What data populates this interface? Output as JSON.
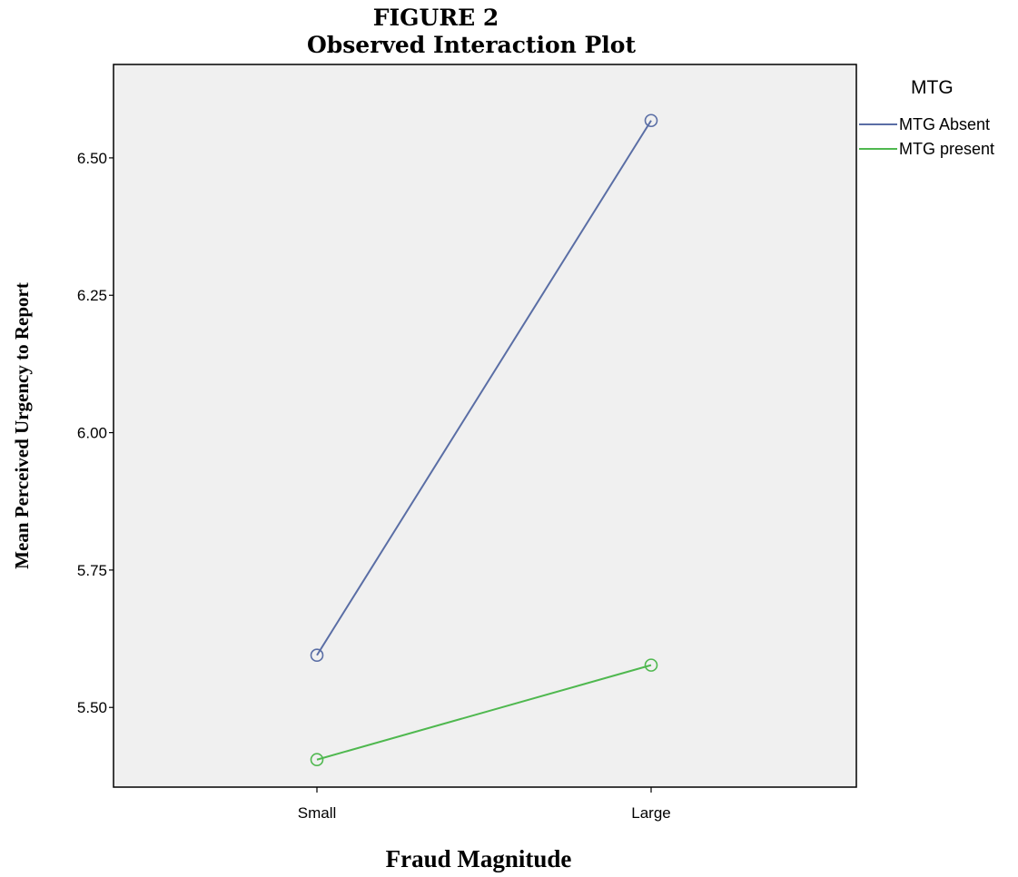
{
  "chart_data": {
    "type": "line",
    "title": "FIGURE 2",
    "subtitle": "Observed Interaction Plot",
    "xlabel": "Fraud Magnitude",
    "ylabel": "Mean Perceived Urgency to Report",
    "categories": [
      "Small",
      "Large"
    ],
    "ylim": [
      5.355,
      6.67
    ],
    "yticks": [
      "5.50",
      "5.75",
      "6.00",
      "6.25",
      "6.50"
    ],
    "grid": false,
    "legend_title": "MTG",
    "legend_position": "right-top",
    "series": [
      {
        "name": "MTG Absent",
        "values": [
          5.595,
          6.568
        ],
        "color": "#5a6ea5"
      },
      {
        "name": "MTG present",
        "values": [
          5.405,
          5.577
        ],
        "color": "#4fb84f"
      }
    ],
    "background_color": "#f0f0f0"
  }
}
